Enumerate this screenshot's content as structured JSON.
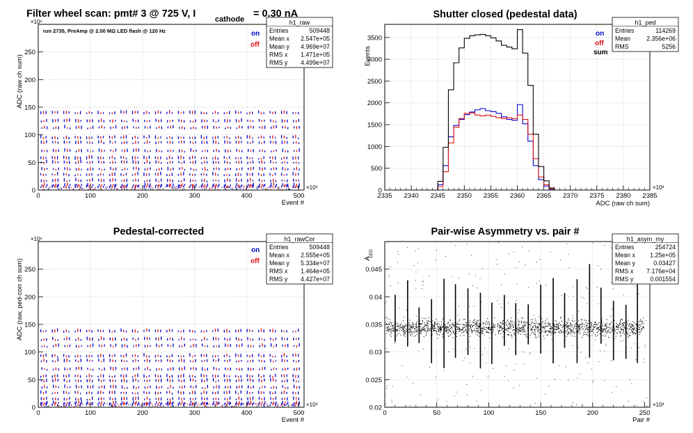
{
  "colors": {
    "on": "#0000cc",
    "off": "#e01010",
    "sum": "#000000",
    "grid": "#b0b0b0",
    "frame": "#000000"
  },
  "chart_data": [
    {
      "id": "raw",
      "type": "scatter",
      "title": "Filter wheel scan: pmt#   3 @   725 V, I",
      "title_sub": "cathode",
      "title_tail": "= 0.30 nA",
      "annotation": "run 2735, PreAmp @ 2.00 MΩ   LED flash @  120 Hz",
      "xlabel": "Event #",
      "ylabel": "ADC (raw ch sum)",
      "x_exponent": "×10³",
      "y_exponent": "×10⁶",
      "xlim": [
        0,
        510
      ],
      "ylim": [
        0,
        300
      ],
      "xticks": [
        0,
        100,
        200,
        300,
        400,
        500
      ],
      "yticks": [
        0,
        50,
        100,
        150,
        200,
        250
      ],
      "grid": true,
      "legend": [
        "on",
        "off"
      ],
      "levels": [
        137,
        122,
        110,
        92,
        83,
        68,
        55,
        47,
        35,
        25,
        14,
        6,
        3
      ],
      "pattern_period": 22,
      "stats": {
        "name": "h1_raw",
        "rows": [
          [
            "Entries",
            "509448"
          ],
          [
            "Mean x",
            "2.547e+05"
          ],
          [
            "Mean y",
            "4.969e+07"
          ],
          [
            "RMS x",
            "1.471e+05"
          ],
          [
            "RMS y",
            "4.499e+07"
          ]
        ]
      }
    },
    {
      "id": "ped",
      "type": "line",
      "title": "Shutter closed (pedestal data)",
      "xlabel": "ADC (raw ch sum)",
      "ylabel": "Events",
      "x_exponent": "×10³",
      "xlim": [
        2335,
        2385
      ],
      "ylim": [
        0,
        3800
      ],
      "xticks": [
        2335,
        2340,
        2345,
        2350,
        2355,
        2360,
        2365,
        2370,
        2375,
        2380,
        2385
      ],
      "yticks": [
        0,
        500,
        1000,
        1500,
        2000,
        2500,
        3000,
        3500
      ],
      "grid": true,
      "legend": [
        "on",
        "off",
        "sum"
      ],
      "stats": {
        "name": "h1_ped",
        "rows": [
          [
            "Entries",
            "114269"
          ],
          [
            "Mean",
            "2.356e+06"
          ],
          [
            "RMS",
            "5256"
          ]
        ]
      },
      "x": [
        2345.5,
        2346.5,
        2347.5,
        2348.5,
        2349.5,
        2350.5,
        2351.5,
        2352.5,
        2353.5,
        2354.5,
        2355.5,
        2356.5,
        2357.5,
        2358.5,
        2359.5,
        2360.5,
        2361.5,
        2362.5,
        2363.5,
        2364.5,
        2365.5,
        2366.5
      ],
      "series": [
        {
          "name": "on",
          "values": [
            120,
            560,
            1220,
            1480,
            1620,
            1730,
            1790,
            1840,
            1870,
            1820,
            1800,
            1760,
            1680,
            1620,
            1600,
            1960,
            1520,
            1120,
            560,
            240,
            90,
            20
          ]
        },
        {
          "name": "off",
          "values": [
            80,
            420,
            1080,
            1440,
            1640,
            1760,
            1770,
            1720,
            1700,
            1720,
            1690,
            1660,
            1640,
            1660,
            1640,
            1720,
            1620,
            1280,
            720,
            300,
            120,
            30
          ]
        },
        {
          "name": "sum",
          "values": [
            200,
            980,
            2300,
            2920,
            3260,
            3480,
            3540,
            3560,
            3570,
            3540,
            3490,
            3420,
            3320,
            3280,
            3240,
            3680,
            3140,
            2400,
            1280,
            540,
            210,
            50
          ]
        }
      ]
    },
    {
      "id": "rawCor",
      "type": "scatter",
      "title": "Pedestal-corrected",
      "xlabel": "Event #",
      "ylabel": "ADC (raw, ped-corr ch sum)",
      "x_exponent": "×10³",
      "y_exponent": "×10⁶",
      "xlim": [
        0,
        510
      ],
      "ylim": [
        0,
        300
      ],
      "xticks": [
        0,
        100,
        200,
        300,
        400,
        500
      ],
      "yticks": [
        0,
        50,
        100,
        150,
        200,
        250
      ],
      "grid": true,
      "legend": [
        "on",
        "off"
      ],
      "levels": [
        135,
        120,
        108,
        90,
        81,
        66,
        53,
        45,
        33,
        23,
        12,
        5,
        2
      ],
      "pattern_period": 22,
      "stats": {
        "name": "h1_rawCor",
        "rows": [
          [
            "Entries",
            "509448"
          ],
          [
            "Mean x",
            "2.555e+05"
          ],
          [
            "Mean y",
            "5.334e+07"
          ],
          [
            "RMS x",
            "1.464e+05"
          ],
          [
            "RMS y",
            "4.427e+07"
          ]
        ]
      }
    },
    {
      "id": "asym",
      "type": "scatter",
      "title": "Pair-wise Asymmetry vs. pair #",
      "xlabel": "Pair #",
      "ylabel": "A",
      "ylabel_sub": "LED",
      "x_exponent": "×10³",
      "xlim": [
        0,
        255
      ],
      "ylim": [
        0.02,
        0.05
      ],
      "xticks": [
        0,
        50,
        100,
        150,
        200,
        250
      ],
      "yticks": [
        0.02,
        0.025,
        0.03,
        0.035,
        0.04,
        0.045
      ],
      "grid": true,
      "band_center": 0.0343,
      "band_halfwidth": 0.0013,
      "spike_x": [
        10,
        22,
        33,
        45,
        57,
        68,
        80,
        92,
        103,
        115,
        126,
        138,
        150,
        162,
        173,
        185,
        197,
        208,
        220,
        232,
        243
      ],
      "stats": {
        "name": "h1_asym_my",
        "rows": [
          [
            "Entries",
            "254724"
          ],
          [
            "Mean x",
            "1.25e+05"
          ],
          [
            "Mean y",
            "0.03427"
          ],
          [
            "RMS x",
            "7.176e+04"
          ],
          [
            "RMS y",
            "0.001554"
          ]
        ]
      }
    }
  ]
}
